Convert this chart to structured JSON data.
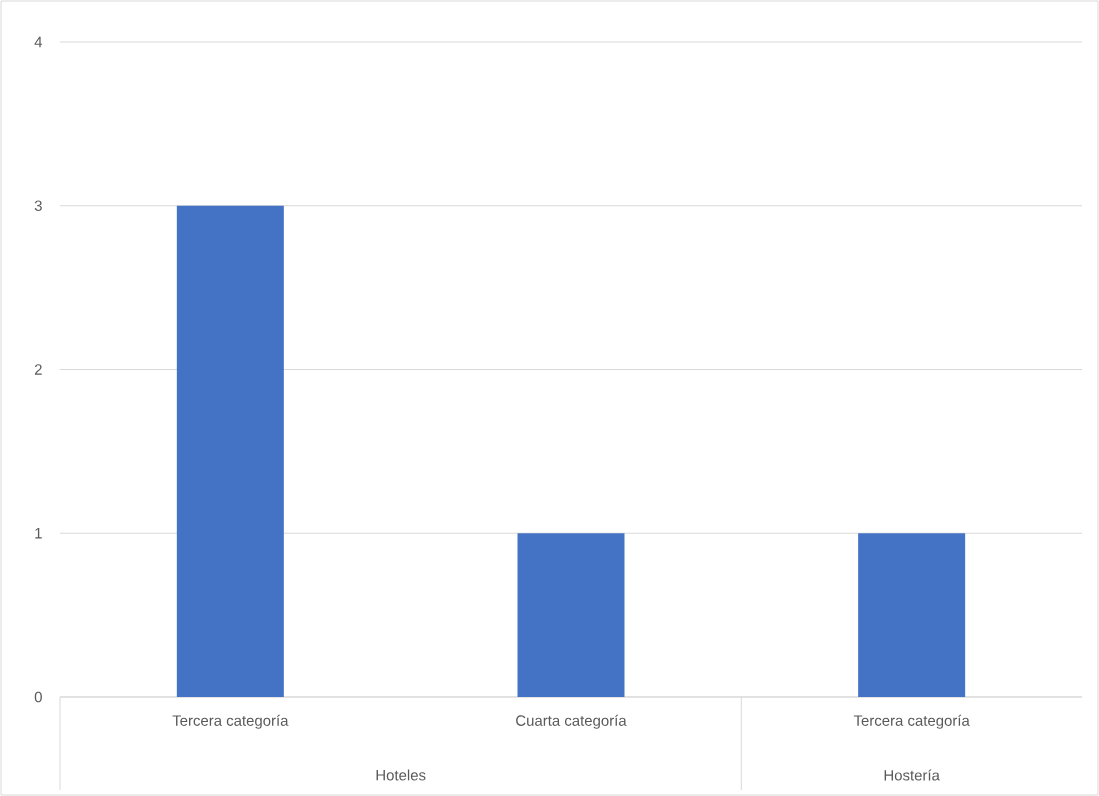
{
  "chart_data": {
    "type": "bar",
    "categories": [
      "Tercera categoría",
      "Cuarta categoría",
      "Tercera categoría"
    ],
    "values": [
      3,
      1,
      1
    ],
    "color": "#4472c4",
    "ylim": [
      0,
      4
    ],
    "yticks": [
      0,
      1,
      2,
      3,
      4
    ],
    "grid": "y",
    "annotations": [
      "Hoteles",
      "Hostería"
    ]
  }
}
